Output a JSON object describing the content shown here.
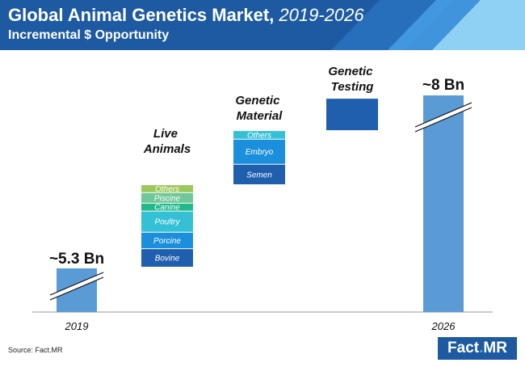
{
  "header": {
    "title": "Global Animal Genetics Market,",
    "title_years": "2019-2026",
    "subtitle": "Incremental $ Opportunity"
  },
  "chart_data": {
    "type": "bar",
    "title": "Global Animal Genetics Market, 2019-2026",
    "subtitle": "Incremental $ Opportunity",
    "categories": [
      "2019",
      "Live Animals",
      "Genetic Material",
      "Genetic Testing",
      "2026"
    ],
    "start": {
      "label": "2019",
      "value_label": "~5.3 Bn",
      "value": 5.3,
      "color": "#5b9bd5"
    },
    "end": {
      "label": "2026",
      "value_label": "~8 Bn",
      "value": 8.0,
      "color": "#5b9bd5"
    },
    "increments": [
      {
        "name": "Live Animals",
        "segments": [
          {
            "name": "Bovine",
            "value": 0.28,
            "color": "#1f5fae"
          },
          {
            "name": "Porcine",
            "value": 0.25,
            "color": "#1c8fdc"
          },
          {
            "name": "Poultry",
            "value": 0.32,
            "color": "#35c0d6"
          },
          {
            "name": "Canine",
            "value": 0.12,
            "color": "#22b98a"
          },
          {
            "name": "Piscine",
            "value": 0.16,
            "color": "#6fc79a"
          },
          {
            "name": "Others",
            "value": 0.12,
            "color": "#9bc85a"
          }
        ]
      },
      {
        "name": "Genetic Material",
        "segments": [
          {
            "name": "Semen",
            "value": 0.31,
            "color": "#1f5fae"
          },
          {
            "name": "Embryo",
            "value": 0.38,
            "color": "#1c8fdc"
          },
          {
            "name": "Others",
            "value": 0.13,
            "color": "#35c0d6"
          }
        ]
      },
      {
        "name": "Genetic Testing",
        "segments": [
          {
            "name": "",
            "value": 0.49,
            "color": "#1f5fae"
          }
        ]
      }
    ],
    "ylim": [
      0,
      8.0
    ],
    "grid": false,
    "axis_break": true
  },
  "footer": {
    "source": "Source: Fact.MR",
    "logo_main": "Fact",
    "logo_dot": ".",
    "logo_end": "MR"
  }
}
